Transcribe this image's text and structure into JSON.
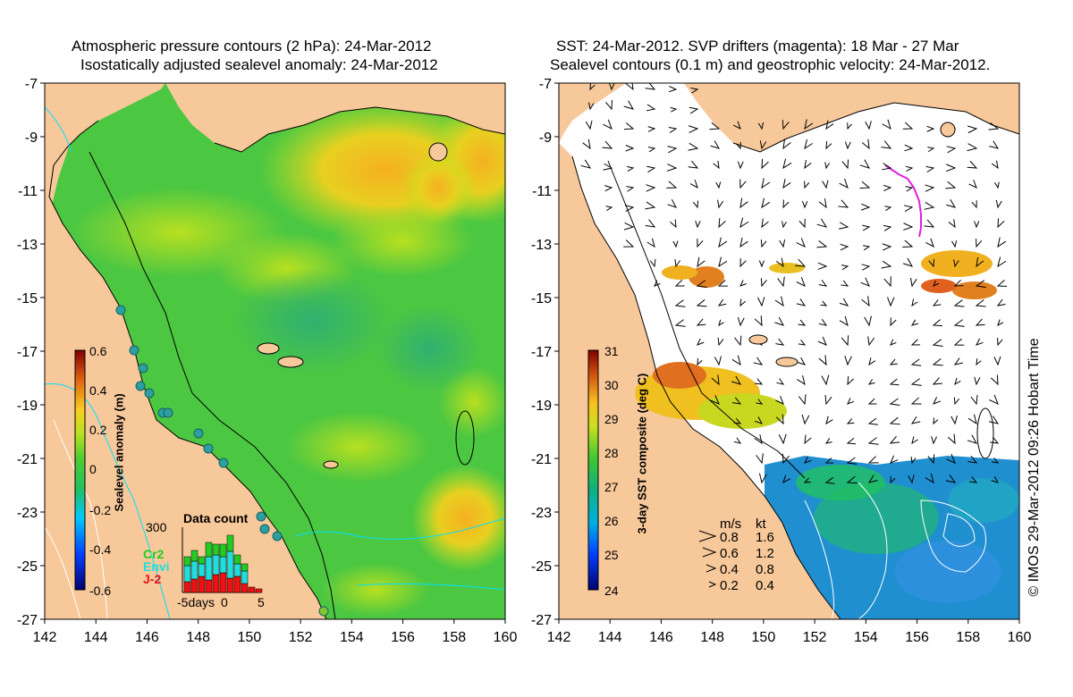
{
  "left_panel": {
    "title_line1": "Atmospheric pressure contours (2 hPa): 24-Mar-2012",
    "title_line2": "Isostatically adjusted sealevel anomaly: 24-Mar-2012",
    "colorbar": {
      "label": "Sealevel anomaly (m)",
      "ticks": [
        "0.6",
        "0.4",
        "0.2",
        "0",
        "-0.2",
        "-0.4",
        "-0.6"
      ],
      "range": [
        -0.6,
        0.6
      ]
    },
    "data_count": {
      "title": "Data count",
      "ymax_label": "300",
      "xlabels": [
        "-5days",
        "0",
        "5"
      ],
      "series": [
        {
          "name": "Cr2",
          "color": "#22cc22"
        },
        {
          "name": "Envi",
          "color": "#22dddd"
        },
        {
          "name": "J-2",
          "color": "#ee1111"
        }
      ]
    }
  },
  "right_panel": {
    "title_line1": "SST: 24-Mar-2012. SVP drifters (magenta): 18 Mar - 27 Mar",
    "title_line2": "Sealevel contours (0.1 m) and geostrophic velocity: 24-Mar-2012.",
    "colorbar": {
      "label": "3-day SST composite (deg C)",
      "ticks": [
        "31",
        "30",
        "29",
        "28",
        "27",
        "26",
        "25",
        "24"
      ],
      "range": [
        24,
        31
      ]
    },
    "velocity_legend": {
      "header_ms": "m/s",
      "header_kt": "kt",
      "rows": [
        {
          "ms": "0.8",
          "kt": "1.6"
        },
        {
          "ms": "0.6",
          "kt": "1.2"
        },
        {
          "ms": "0.4",
          "kt": "0.8"
        },
        {
          "ms": "0.2",
          "kt": "0.4"
        }
      ]
    }
  },
  "axes": {
    "lon_labels": [
      "142",
      "144",
      "146",
      "148",
      "150",
      "152",
      "154",
      "156",
      "158",
      "160"
    ],
    "lat_labels": [
      "-7",
      "-9",
      "-11",
      "-13",
      "-15",
      "-17",
      "-19",
      "-21",
      "-23",
      "-25",
      "-27"
    ]
  },
  "credit": "© IMOS 29-Mar-2012 09:26 Hobart Time",
  "colors": {
    "land": "#f7c89a",
    "sea_green": "#4cc742",
    "sea_yellow": "#c4e81e",
    "sea_orange": "#f5a623",
    "cold_blue": "#1f7fe0",
    "drifter": "#e020e0"
  }
}
